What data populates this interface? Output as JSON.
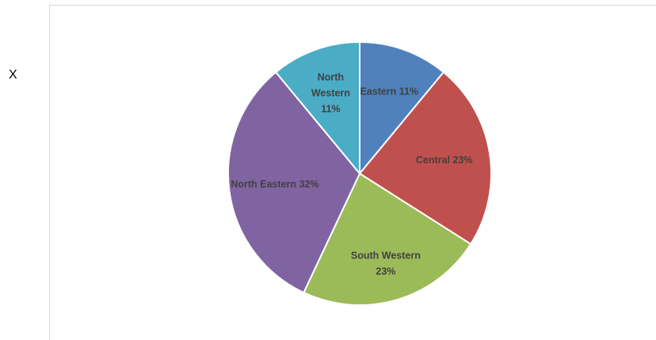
{
  "side_label": "X",
  "chart_data": {
    "type": "pie",
    "title": "",
    "start_angle_deg": 0,
    "direction": "clockwise",
    "slices": [
      {
        "name": "Eastern",
        "value": 11,
        "label": "Eastern  11%",
        "label_lines": [
          "Eastern  11%"
        ],
        "color": "#4F81BD"
      },
      {
        "name": "Central",
        "value": 23,
        "label": "Central  23%",
        "label_lines": [
          "Central  23%"
        ],
        "color": "#C0504D"
      },
      {
        "name": "South Western",
        "value": 23,
        "label": "South Western 23%",
        "label_lines": [
          "South Western",
          "23%"
        ],
        "color": "#9BBB59"
      },
      {
        "name": "North Eastern",
        "value": 32,
        "label": "North Eastern 32%",
        "label_lines": [
          "North Eastern 32%"
        ],
        "color": "#8064A2"
      },
      {
        "name": "North Western",
        "value": 11,
        "label": "North Western 11%",
        "label_lines": [
          "North",
          "Western",
          "11%"
        ],
        "color": "#4BACC6"
      }
    ]
  }
}
